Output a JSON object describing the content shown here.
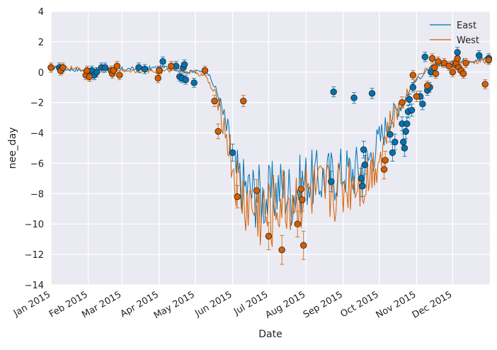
{
  "chart_data": {
    "type": "line",
    "title": "",
    "xlabel": "Date",
    "ylabel": "nee_day",
    "ylim": [
      -14,
      4
    ],
    "xlim": [
      "2015-01-01",
      "2015-12-31"
    ],
    "grid": true,
    "background_color": "#EAEAF2",
    "legend_placement": "top-right",
    "yticks": [
      -14,
      -12,
      -10,
      -8,
      -6,
      -4,
      -2,
      0,
      2,
      4
    ],
    "yticklabels": [
      "−14",
      "−12",
      "−10",
      "−8",
      "−6",
      "−4",
      "−2",
      "0",
      "2",
      "4"
    ],
    "xticks": [
      "2015-01-01",
      "2015-02-01",
      "2015-03-01",
      "2015-04-01",
      "2015-05-01",
      "2015-06-01",
      "2015-07-01",
      "2015-08-01",
      "2015-09-01",
      "2015-10-01",
      "2015-11-01",
      "2015-12-01"
    ],
    "xticklabels": [
      "Jan 2015",
      "Feb 2015",
      "Mar 2015",
      "Apr 2015",
      "May 2015",
      "Jun 2015",
      "Jul 2015",
      "Aug 2015",
      "Sep 2015",
      "Oct 2015",
      "Nov 2015",
      "Dec 2015"
    ],
    "series": [
      {
        "name": "East",
        "color": "#0072B2",
        "line": [
          [
            "2015-01-01",
            0.3
          ],
          [
            "2015-01-15",
            0.2
          ],
          [
            "2015-02-01",
            0.1
          ],
          [
            "2015-02-15",
            0.2
          ],
          [
            "2015-03-01",
            0.2
          ],
          [
            "2015-03-15",
            0.2
          ],
          [
            "2015-04-01",
            0.3
          ],
          [
            "2015-04-15",
            0.3
          ],
          [
            "2015-04-25",
            0.0
          ],
          [
            "2015-05-01",
            0.0
          ],
          [
            "2015-05-10",
            0.2
          ],
          [
            "2015-05-20",
            -1.5
          ],
          [
            "2015-05-28",
            -4.0
          ],
          [
            "2015-06-03",
            -6.5
          ],
          [
            "2015-06-10",
            -7.5
          ],
          [
            "2015-06-20",
            -8.0
          ],
          [
            "2015-07-01",
            -8.3
          ],
          [
            "2015-07-10",
            -7.5
          ],
          [
            "2015-07-20",
            -8.0
          ],
          [
            "2015-08-01",
            -7.0
          ],
          [
            "2015-08-15",
            -7.0
          ],
          [
            "2015-09-01",
            -6.5
          ],
          [
            "2015-09-10",
            -6.5
          ],
          [
            "2015-09-20",
            -6.0
          ],
          [
            "2015-10-01",
            -4.5
          ],
          [
            "2015-10-10",
            -3.0
          ],
          [
            "2015-10-20",
            -2.0
          ],
          [
            "2015-11-01",
            -0.5
          ],
          [
            "2015-11-15",
            0.4
          ],
          [
            "2015-12-01",
            0.6
          ],
          [
            "2015-12-15",
            0.8
          ],
          [
            "2015-12-31",
            0.9
          ]
        ],
        "points": [
          {
            "x": "2015-01-01",
            "y": 0.3
          },
          {
            "x": "2015-01-08",
            "y": 0.3
          },
          {
            "x": "2015-01-10",
            "y": 0.2
          },
          {
            "x": "2015-02-02",
            "y": -0.3
          },
          {
            "x": "2015-02-04",
            "y": 0.1
          },
          {
            "x": "2015-02-06",
            "y": -0.2
          },
          {
            "x": "2015-02-08",
            "y": 0.0
          },
          {
            "x": "2015-02-12",
            "y": 0.3
          },
          {
            "x": "2015-02-15",
            "y": 0.3
          },
          {
            "x": "2015-03-15",
            "y": 0.3
          },
          {
            "x": "2015-03-20",
            "y": 0.2
          },
          {
            "x": "2015-04-04",
            "y": 0.7
          },
          {
            "x": "2015-04-15",
            "y": 0.4
          },
          {
            "x": "2015-04-18",
            "y": -0.3
          },
          {
            "x": "2015-04-20",
            "y": -0.4
          },
          {
            "x": "2015-04-21",
            "y": 0.3
          },
          {
            "x": "2015-04-22",
            "y": 0.5
          },
          {
            "x": "2015-04-23",
            "y": -0.5
          },
          {
            "x": "2015-04-30",
            "y": -0.7
          },
          {
            "x": "2015-06-01",
            "y": -5.3
          },
          {
            "x": "2015-08-22",
            "y": -7.2
          },
          {
            "x": "2015-08-24",
            "y": -1.3
          },
          {
            "x": "2015-09-10",
            "y": -1.7
          },
          {
            "x": "2015-09-16",
            "y": -7.0
          },
          {
            "x": "2015-09-17",
            "y": -7.5
          },
          {
            "x": "2015-09-18",
            "y": -5.1
          },
          {
            "x": "2015-09-19",
            "y": -6.1
          },
          {
            "x": "2015-09-25",
            "y": -1.4
          },
          {
            "x": "2015-10-10",
            "y": -4.1
          },
          {
            "x": "2015-10-12",
            "y": -5.3
          },
          {
            "x": "2015-10-14",
            "y": -4.6
          },
          {
            "x": "2015-10-20",
            "y": -3.4
          },
          {
            "x": "2015-10-21",
            "y": -4.6
          },
          {
            "x": "2015-10-22",
            "y": -5.0
          },
          {
            "x": "2015-10-23",
            "y": -3.9
          },
          {
            "x": "2015-10-24",
            "y": -3.4
          },
          {
            "x": "2015-10-25",
            "y": -2.6
          },
          {
            "x": "2015-10-26",
            "y": -1.8
          },
          {
            "x": "2015-10-28",
            "y": -2.5
          },
          {
            "x": "2015-10-29",
            "y": -1.0
          },
          {
            "x": "2015-11-04",
            "y": -1.6
          },
          {
            "x": "2015-11-06",
            "y": -2.1
          },
          {
            "x": "2015-11-08",
            "y": 1.0
          },
          {
            "x": "2015-11-10",
            "y": -1.2
          },
          {
            "x": "2015-11-12",
            "y": -1.0
          },
          {
            "x": "2015-11-13",
            "y": 0.0
          },
          {
            "x": "2015-12-05",
            "y": 1.3
          },
          {
            "x": "2015-12-23",
            "y": 1.1
          },
          {
            "x": "2015-12-31",
            "y": 0.9
          }
        ]
      },
      {
        "name": "West",
        "color": "#D55E00",
        "line": [
          [
            "2015-01-01",
            0.3
          ],
          [
            "2015-01-15",
            0.3
          ],
          [
            "2015-02-01",
            0.1
          ],
          [
            "2015-02-15",
            0.1
          ],
          [
            "2015-03-01",
            0.1
          ],
          [
            "2015-03-15",
            0.1
          ],
          [
            "2015-04-01",
            0.0
          ],
          [
            "2015-04-15",
            0.2
          ],
          [
            "2015-04-25",
            0.0
          ],
          [
            "2015-05-01",
            0.0
          ],
          [
            "2015-05-10",
            -0.3
          ],
          [
            "2015-05-20",
            -2.0
          ],
          [
            "2015-05-28",
            -4.5
          ],
          [
            "2015-06-03",
            -7.0
          ],
          [
            "2015-06-10",
            -8.5
          ],
          [
            "2015-06-20",
            -9.0
          ],
          [
            "2015-07-01",
            -9.5
          ],
          [
            "2015-07-10",
            -8.5
          ],
          [
            "2015-07-20",
            -8.5
          ],
          [
            "2015-08-01",
            -8.0
          ],
          [
            "2015-08-15",
            -8.0
          ],
          [
            "2015-09-01",
            -7.5
          ],
          [
            "2015-09-10",
            -7.0
          ],
          [
            "2015-09-20",
            -7.0
          ],
          [
            "2015-10-01",
            -5.5
          ],
          [
            "2015-10-10",
            -3.5
          ],
          [
            "2015-10-20",
            -2.0
          ],
          [
            "2015-11-01",
            -0.3
          ],
          [
            "2015-11-15",
            0.5
          ],
          [
            "2015-12-01",
            0.6
          ],
          [
            "2015-12-15",
            0.6
          ],
          [
            "2015-12-31",
            0.8
          ]
        ],
        "points": [
          {
            "x": "2015-01-01",
            "y": 0.3
          },
          {
            "x": "2015-01-09",
            "y": 0.1
          },
          {
            "x": "2015-01-11",
            "y": 0.3
          },
          {
            "x": "2015-01-30",
            "y": -0.2
          },
          {
            "x": "2015-01-31",
            "y": 0.1
          },
          {
            "x": "2015-02-02",
            "y": -0.3
          },
          {
            "x": "2015-02-20",
            "y": 0.1
          },
          {
            "x": "2015-02-21",
            "y": -0.1
          },
          {
            "x": "2015-02-22",
            "y": 0.1
          },
          {
            "x": "2015-02-25",
            "y": 0.4
          },
          {
            "x": "2015-02-27",
            "y": -0.2
          },
          {
            "x": "2015-03-31",
            "y": -0.4
          },
          {
            "x": "2015-04-01",
            "y": 0.1
          },
          {
            "x": "2015-04-11",
            "y": 0.4
          },
          {
            "x": "2015-05-09",
            "y": 0.1
          },
          {
            "x": "2015-05-17",
            "y": -1.9
          },
          {
            "x": "2015-05-20",
            "y": -3.9
          },
          {
            "x": "2015-06-05",
            "y": -8.2
          },
          {
            "x": "2015-06-10",
            "y": -1.9
          },
          {
            "x": "2015-06-21",
            "y": -7.8
          },
          {
            "x": "2015-07-01",
            "y": -10.8
          },
          {
            "x": "2015-07-12",
            "y": -11.7
          },
          {
            "x": "2015-07-25",
            "y": -10.0
          },
          {
            "x": "2015-07-28",
            "y": -7.7
          },
          {
            "x": "2015-07-29",
            "y": -8.4
          },
          {
            "x": "2015-07-30",
            "y": -11.4
          },
          {
            "x": "2015-10-05",
            "y": -6.4
          },
          {
            "x": "2015-10-06",
            "y": -5.8
          },
          {
            "x": "2015-10-20",
            "y": -2.0
          },
          {
            "x": "2015-10-29",
            "y": -0.2
          },
          {
            "x": "2015-11-01",
            "y": -1.6
          },
          {
            "x": "2015-11-10",
            "y": -0.9
          },
          {
            "x": "2015-11-14",
            "y": 0.9
          },
          {
            "x": "2015-11-16",
            "y": 0.3
          },
          {
            "x": "2015-11-17",
            "y": -0.1
          },
          {
            "x": "2015-11-19",
            "y": 0.7
          },
          {
            "x": "2015-11-24",
            "y": 0.6
          },
          {
            "x": "2015-11-28",
            "y": 0.4
          },
          {
            "x": "2015-12-01",
            "y": 0.0
          },
          {
            "x": "2015-12-03",
            "y": 0.5
          },
          {
            "x": "2015-12-04",
            "y": 0.6
          },
          {
            "x": "2015-12-05",
            "y": 0.9
          },
          {
            "x": "2015-12-06",
            "y": 0.3
          },
          {
            "x": "2015-12-08",
            "y": 0.1
          },
          {
            "x": "2015-12-10",
            "y": -0.1
          },
          {
            "x": "2015-12-12",
            "y": 0.6
          },
          {
            "x": "2015-12-28",
            "y": -0.8
          },
          {
            "x": "2015-12-31",
            "y": 0.8
          }
        ]
      }
    ]
  }
}
